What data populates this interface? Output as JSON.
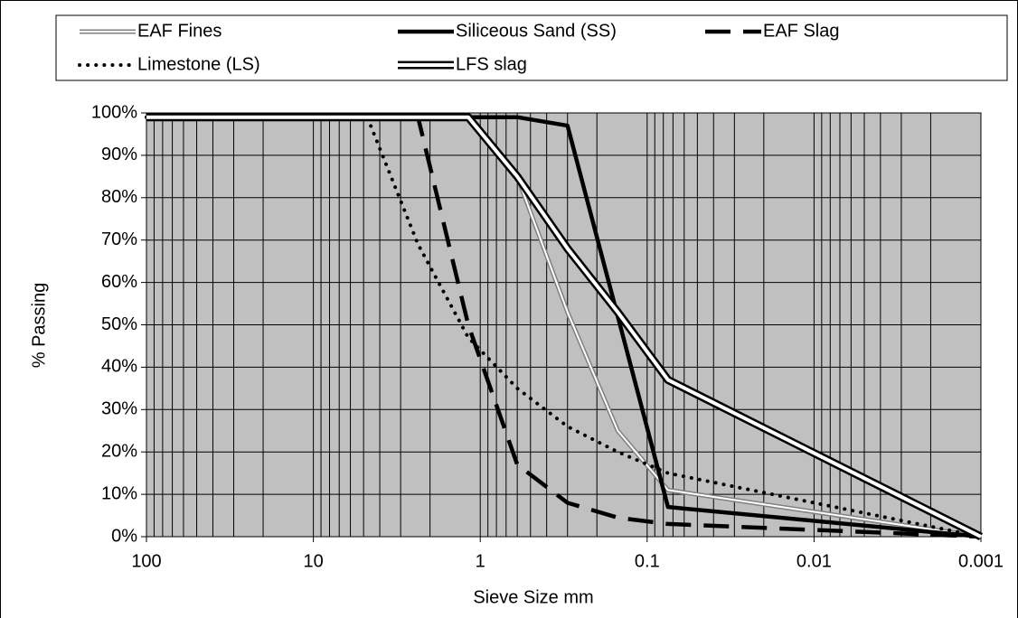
{
  "chart_data": {
    "type": "line",
    "xlabel": "Sieve Size mm",
    "ylabel": "% Passing",
    "xscale": "log",
    "xlim": [
      100,
      0.001
    ],
    "xticks": [
      100,
      10,
      1,
      0.1,
      0.01,
      0.001
    ],
    "ylim": [
      0,
      100
    ],
    "yticks": [
      {
        "value": 0,
        "label": "0%"
      },
      {
        "value": 10,
        "label": "10%"
      },
      {
        "value": 20,
        "label": "20%"
      },
      {
        "value": 30,
        "label": "30%"
      },
      {
        "value": 40,
        "label": "40%"
      },
      {
        "value": 50,
        "label": "50%"
      },
      {
        "value": 60,
        "label": "60%"
      },
      {
        "value": 70,
        "label": "70%"
      },
      {
        "value": 80,
        "label": "80%"
      },
      {
        "value": 90,
        "label": "90%"
      },
      {
        "value": 100,
        "label": "100%"
      }
    ],
    "grid": true,
    "minor_grid": true,
    "legend": "top",
    "series": [
      {
        "name": "EAF Fines",
        "color": "#808080",
        "style": "double",
        "x": [
          100,
          1.18,
          0.6,
          0.3,
          0.15,
          0.075,
          0.001
        ],
        "values": [
          99,
          99,
          85,
          53,
          25,
          11,
          0
        ]
      },
      {
        "name": "Siliceous Sand (SS)",
        "color": "#000000",
        "style": "solid",
        "x": [
          100,
          1.18,
          0.6,
          0.3,
          0.075,
          0.001
        ],
        "values": [
          99,
          99,
          99,
          97,
          7,
          0
        ]
      },
      {
        "name": "EAF Slag",
        "color": "#000000",
        "style": "dashed",
        "x": [
          100,
          2.36,
          1.18,
          0.6,
          0.3,
          0.15,
          0.075,
          0.001
        ],
        "values": [
          99,
          99,
          50,
          17,
          8,
          4.5,
          3,
          0
        ]
      },
      {
        "name": "Limestone (LS)",
        "color": "#000000",
        "style": "dotted",
        "x": [
          100,
          4.75,
          2.36,
          1.18,
          0.6,
          0.3,
          0.15,
          0.075,
          0.001
        ],
        "values": [
          99,
          99,
          69,
          47,
          35,
          26,
          20,
          15,
          0
        ]
      },
      {
        "name": "LFS slag",
        "color": "#000000",
        "style": "double-thick",
        "x": [
          100,
          1.18,
          0.6,
          0.3,
          0.15,
          0.075,
          0.001
        ],
        "values": [
          99,
          99,
          85,
          68,
          53,
          37,
          0
        ]
      }
    ]
  }
}
